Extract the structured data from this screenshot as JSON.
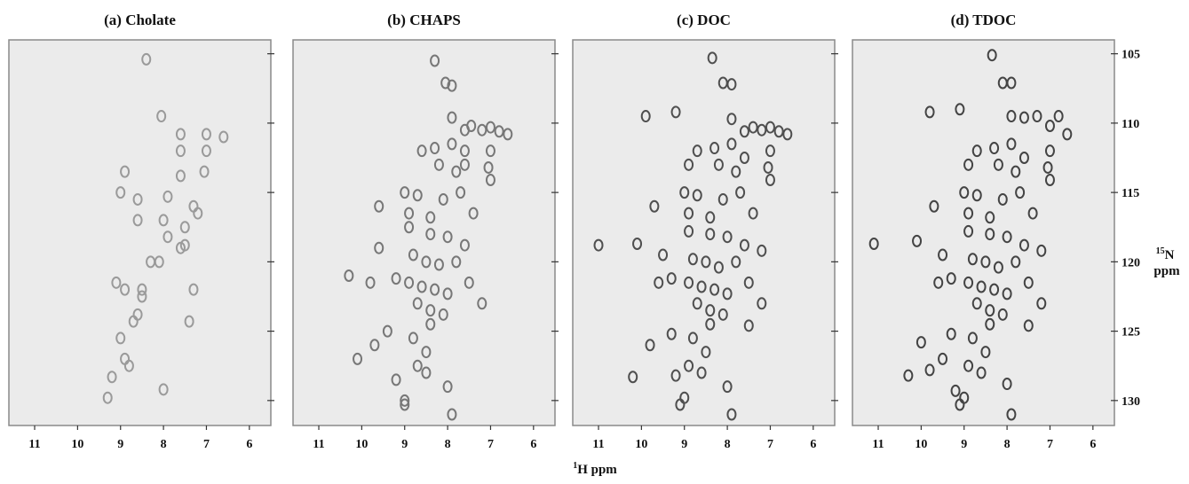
{
  "x_label_isotope": "1",
  "x_label": "H ppm",
  "y_label_isotope": "15",
  "y_label_nucleus": "N",
  "y_label_unit": "ppm",
  "chart_data": [
    {
      "type": "scatter",
      "title": "(a) Cholate",
      "color": "#9a9a9a",
      "xlim": [
        11.6,
        5.5
      ],
      "xticks": [
        11,
        10,
        9,
        8,
        7,
        6
      ],
      "ylim": [
        104,
        131.8
      ],
      "yticks": [
        105,
        110,
        115,
        120,
        125,
        130
      ],
      "y_tick_labels": false,
      "x": [
        8.05,
        7.6,
        7.6,
        7.0,
        7.0,
        7.05,
        7.6,
        6.6,
        8.4,
        8.9,
        9.0,
        8.6,
        7.9,
        7.3,
        8.6,
        8.0,
        7.5,
        7.9,
        7.6,
        7.5,
        8.1,
        8.3,
        9.1,
        8.5,
        8.5,
        8.9,
        7.3,
        8.6,
        8.7,
        7.4,
        9.0,
        8.9,
        8.8,
        9.2,
        8.0,
        9.3,
        7.2
      ],
      "y": [
        109.5,
        110.8,
        112,
        110.8,
        112,
        113.5,
        113.8,
        111,
        105.4,
        113.5,
        115,
        115.5,
        115.3,
        116,
        117,
        117,
        117.5,
        118.2,
        119,
        118.8,
        120,
        120,
        121.5,
        122,
        122.5,
        122,
        122,
        123.8,
        124.3,
        124.3,
        125.5,
        127,
        127.5,
        128.3,
        129.2,
        129.8,
        116.5
      ]
    },
    {
      "type": "scatter",
      "title": "(b) CHAPS",
      "color": "#777777",
      "xlim": [
        11.6,
        5.5
      ],
      "xticks": [
        11,
        10,
        9,
        8,
        7,
        6
      ],
      "ylim": [
        104,
        131.8
      ],
      "yticks": [
        105,
        110,
        115,
        120,
        125,
        130
      ],
      "y_tick_labels": false,
      "x": [
        8.3,
        8.05,
        7.9,
        7.9,
        7.6,
        7.45,
        7.2,
        7.0,
        6.8,
        6.6,
        7.0,
        7.05,
        7.0,
        7.6,
        7.6,
        7.9,
        8.3,
        8.6,
        8.2,
        7.8,
        9.0,
        8.7,
        8.1,
        7.7,
        9.6,
        8.9,
        8.4,
        7.4,
        8.9,
        8.4,
        8.0,
        7.6,
        9.6,
        8.8,
        8.5,
        8.2,
        7.8,
        9.2,
        8.9,
        8.6,
        8.3,
        8.0,
        7.5,
        8.7,
        8.4,
        8.1,
        7.2,
        8.4,
        9.4,
        8.8,
        8.5,
        9.7,
        10.1,
        8.7,
        8.5,
        9.2,
        8.0,
        9.0,
        9.0,
        7.9,
        9.8,
        10.3
      ],
      "y": [
        105.5,
        107.1,
        107.3,
        109.6,
        110.5,
        110.2,
        110.5,
        110.3,
        110.6,
        110.8,
        112,
        113.2,
        114.1,
        112,
        113,
        111.5,
        111.8,
        112,
        113,
        113.5,
        115,
        115.2,
        115.5,
        115,
        116,
        116.5,
        116.8,
        116.5,
        117.5,
        118,
        118.2,
        118.8,
        119,
        119.5,
        120,
        120.2,
        120,
        121.2,
        121.5,
        121.8,
        122,
        122.3,
        121.5,
        123,
        123.5,
        123.8,
        123,
        124.5,
        125,
        125.5,
        126.5,
        126,
        127,
        127.5,
        128,
        128.5,
        129,
        130,
        130.3,
        131,
        121.5,
        121
      ]
    },
    {
      "type": "scatter",
      "title": "(c) DOC",
      "color": "#4f4f4f",
      "xlim": [
        11.6,
        5.5
      ],
      "xticks": [
        11,
        10,
        9,
        8,
        7,
        6
      ],
      "ylim": [
        104,
        131.8
      ],
      "yticks": [
        105,
        110,
        115,
        120,
        125,
        130
      ],
      "y_tick_labels": false,
      "x": [
        8.35,
        8.1,
        7.9,
        9.9,
        9.2,
        7.9,
        7.6,
        7.4,
        7.2,
        7.0,
        6.8,
        6.6,
        7.0,
        7.05,
        7.0,
        7.6,
        7.9,
        8.3,
        8.7,
        8.9,
        8.2,
        7.8,
        9.0,
        8.7,
        8.1,
        7.7,
        9.7,
        8.9,
        8.4,
        7.4,
        8.9,
        8.4,
        8.0,
        7.6,
        11.0,
        10.1,
        9.5,
        8.8,
        8.5,
        8.2,
        7.8,
        9.3,
        8.9,
        8.6,
        8.3,
        8.0,
        7.5,
        8.7,
        8.4,
        8.1,
        7.2,
        8.4,
        9.3,
        8.8,
        8.5,
        9.8,
        10.2,
        8.9,
        8.6,
        9.2,
        8.0,
        9.0,
        9.1,
        7.9,
        9.6,
        7.5,
        7.2
      ],
      "y": [
        105.3,
        107.1,
        107.2,
        109.5,
        109.2,
        109.7,
        110.6,
        110.3,
        110.5,
        110.3,
        110.6,
        110.8,
        112,
        113.2,
        114.1,
        112.5,
        111.5,
        111.8,
        112,
        113,
        113,
        113.5,
        115,
        115.2,
        115.5,
        115,
        116,
        116.5,
        116.8,
        116.5,
        117.8,
        118,
        118.2,
        118.8,
        118.8,
        118.7,
        119.5,
        119.8,
        120,
        120.4,
        120,
        121.2,
        121.5,
        121.8,
        122,
        122.3,
        121.5,
        123,
        123.5,
        123.8,
        123,
        124.5,
        125.2,
        125.5,
        126.5,
        126,
        128.3,
        127.5,
        128,
        128.2,
        129,
        129.8,
        130.3,
        131,
        121.5,
        124.6,
        119.2
      ]
    },
    {
      "type": "scatter",
      "title": "(d) TDOC",
      "color": "#444444",
      "xlim": [
        11.6,
        5.5
      ],
      "xticks": [
        11,
        10,
        9,
        8,
        7,
        6
      ],
      "ylim": [
        104,
        131.8
      ],
      "yticks": [
        105,
        110,
        115,
        120,
        125,
        130
      ],
      "y_tick_labels": true,
      "x": [
        8.35,
        8.1,
        7.9,
        9.8,
        9.1,
        7.9,
        7.6,
        7.3,
        7.0,
        6.8,
        6.6,
        7.0,
        7.05,
        7.0,
        7.6,
        7.9,
        8.3,
        8.7,
        8.9,
        8.2,
        7.8,
        9.0,
        8.7,
        8.1,
        7.7,
        9.7,
        8.9,
        8.4,
        7.4,
        8.9,
        8.4,
        8.0,
        7.6,
        11.1,
        10.1,
        9.5,
        8.8,
        8.5,
        8.2,
        7.8,
        9.3,
        8.9,
        8.6,
        8.3,
        8.0,
        7.5,
        8.7,
        8.4,
        8.1,
        7.2,
        8.4,
        9.3,
        8.8,
        8.5,
        10.0,
        10.3,
        9.8,
        8.9,
        8.6,
        9.2,
        8.0,
        9.0,
        9.1,
        7.9,
        9.6,
        7.5,
        7.2,
        9.5
      ],
      "y": [
        105.1,
        107.1,
        107.1,
        109.2,
        109.0,
        109.5,
        109.6,
        109.5,
        110.2,
        109.5,
        110.8,
        112,
        113.2,
        114.1,
        112.5,
        111.5,
        111.8,
        112,
        113,
        113,
        113.5,
        115,
        115.2,
        115.5,
        115,
        116,
        116.5,
        116.8,
        116.5,
        117.8,
        118,
        118.2,
        118.8,
        118.7,
        118.5,
        119.5,
        119.8,
        120,
        120.4,
        120,
        121.2,
        121.5,
        121.8,
        122,
        122.3,
        121.5,
        123,
        123.5,
        123.8,
        123,
        124.5,
        125.2,
        125.5,
        126.5,
        125.8,
        128.2,
        127.8,
        127.5,
        128,
        129.3,
        128.8,
        129.8,
        130.3,
        131,
        121.5,
        124.6,
        119.2,
        127
      ]
    }
  ]
}
